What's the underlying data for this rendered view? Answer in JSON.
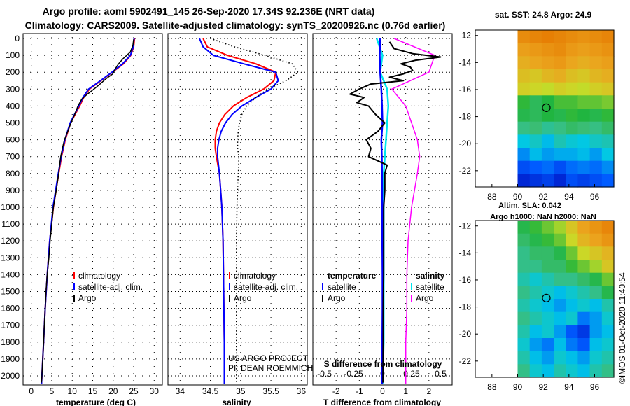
{
  "title_line1": "Argo profile: aoml 5902491_145 26-Sep-2020 17.34S 92.236E (NRT data)",
  "title_line2": "Climatology: CARS2009. Satellite-adjusted climatology: synTS_20200926.nc (0.76d earlier)",
  "colors": {
    "climatology": "#ff0000",
    "satellite": "#0000ff",
    "argo": "#000000",
    "sal_satellite": "#00e5ee",
    "sal_argo": "#ff00ff"
  },
  "depth_ticks": [
    "0",
    "100",
    "200",
    "300",
    "400",
    "500",
    "600",
    "700",
    "800",
    "900",
    "1000",
    "1100",
    "1200",
    "1300",
    "1400",
    "1500",
    "1600",
    "1700",
    "1800",
    "1900",
    "2000"
  ],
  "chart_data": [
    {
      "type": "line",
      "xlabel": "temperature (deg C)",
      "xticks": [
        "0",
        "5",
        "10",
        "15",
        "20",
        "25",
        "30"
      ],
      "xlim": [
        -2,
        32
      ],
      "ylim": [
        2050,
        -50
      ],
      "legend": {
        "position": "bottom-right",
        "items": [
          "climatology",
          "satellite-adj. clim.",
          "Argo"
        ]
      },
      "series": [
        {
          "name": "climatology",
          "depth": [
            0,
            50,
            100,
            150,
            200,
            250,
            300,
            350,
            400,
            500,
            600,
            700,
            800,
            1000,
            1200,
            1400,
            1600,
            1800,
            2000,
            2050
          ],
          "values": [
            25.2,
            25,
            24.3,
            22.5,
            19.8,
            17,
            14.2,
            12.8,
            11.8,
            9.6,
            8.3,
            7.4,
            6.7,
            5.4,
            4.5,
            3.9,
            3.4,
            3,
            2.6,
            2.5
          ]
        },
        {
          "name": "satellite-adj. clim.",
          "depth": [
            0,
            50,
            100,
            150,
            200,
            250,
            300,
            350,
            400,
            500,
            600,
            700,
            800,
            1000,
            1200,
            1400,
            1600,
            1800,
            2000,
            2050
          ],
          "values": [
            25.1,
            24.9,
            24.2,
            22.3,
            19.7,
            16.9,
            14,
            12.6,
            11.6,
            9.5,
            8.2,
            7.3,
            6.6,
            5.3,
            4.5,
            3.9,
            3.4,
            3,
            2.6,
            2.5
          ]
        },
        {
          "name": "Argo",
          "depth": [
            5,
            40,
            80,
            120,
            150,
            180,
            210,
            240,
            270,
            300,
            330,
            360,
            400,
            450,
            500,
            550,
            600,
            650,
            700,
            750,
            800,
            900,
            1000,
            1100,
            1200,
            1300,
            1400,
            1500,
            1600,
            1700,
            1800,
            1900,
            2000,
            2040
          ],
          "values": [
            25,
            24.8,
            24.2,
            22.4,
            21.3,
            20.5,
            19.9,
            18.2,
            16.8,
            15.3,
            13.7,
            12.3,
            11.4,
            10.6,
            9.7,
            8.9,
            8.1,
            7.6,
            7.2,
            6.9,
            6.7,
            6.1,
            5.4,
            5,
            4.6,
            4.3,
            3.9,
            3.6,
            3.4,
            3.2,
            3,
            2.8,
            2.6,
            2.5
          ]
        }
      ]
    },
    {
      "type": "line",
      "xlabel": "salinity",
      "xticks": [
        "34",
        "34.5",
        "35",
        "35.5",
        "36"
      ],
      "xlim": [
        33.8,
        36.1
      ],
      "ylim": [
        2050,
        -50
      ],
      "legend": {
        "position": "bottom-right",
        "items": [
          "climatology",
          "satellite-adj. clim.",
          "Argo"
        ]
      },
      "annotation": [
        "US ARGO PROJECT",
        "PI: DEAN ROEMMICH"
      ],
      "series": [
        {
          "name": "climatology",
          "depth": [
            0,
            50,
            100,
            150,
            200,
            250,
            300,
            350,
            400,
            450,
            500,
            550,
            600,
            650,
            700,
            800,
            900,
            1000,
            1200,
            1500,
            1800,
            2050
          ],
          "values": [
            34.38,
            34.45,
            34.78,
            35.25,
            35.58,
            35.55,
            35.38,
            35.1,
            34.88,
            34.74,
            34.65,
            34.6,
            34.58,
            34.58,
            34.6,
            34.65,
            34.67,
            34.69,
            34.71,
            34.72,
            34.73,
            34.73
          ]
        },
        {
          "name": "satellite-adj. clim.",
          "depth": [
            0,
            50,
            100,
            150,
            200,
            250,
            300,
            350,
            400,
            450,
            500,
            550,
            600,
            650,
            700,
            800,
            900,
            1000,
            1200,
            1500,
            1800,
            2050
          ],
          "values": [
            34.32,
            34.38,
            34.55,
            35.05,
            35.58,
            35.62,
            35.5,
            35.25,
            35.02,
            34.86,
            34.75,
            34.68,
            34.64,
            34.62,
            34.62,
            34.65,
            34.67,
            34.69,
            34.71,
            34.72,
            34.73,
            34.73
          ]
        },
        {
          "name": "Argo",
          "style": "dotted",
          "depth": [
            0,
            50,
            100,
            150,
            200,
            250,
            300,
            350,
            400,
            450,
            500,
            550,
            600,
            650,
            700,
            750,
            800,
            900,
            1000,
            1200,
            1500,
            1800,
            2050
          ],
          "values": [
            34.5,
            34.9,
            35.4,
            35.85,
            35.95,
            35.75,
            35.45,
            35.25,
            35.1,
            35.02,
            34.98,
            34.96,
            34.95,
            34.95,
            34.97,
            34.97,
            34.96,
            34.95,
            34.94,
            34.93,
            34.93,
            34.93,
            34.93
          ]
        }
      ]
    },
    {
      "type": "line",
      "xlabel": "T difference from climatology",
      "xticks": [
        "-2",
        "-1",
        "0",
        "1",
        "2"
      ],
      "xlim": [
        -3,
        3
      ],
      "s_label": "S difference from climatology",
      "s_ticks": [
        "-0.5",
        "-0.25",
        "0",
        "0.25",
        "0.5"
      ],
      "ylim": [
        2050,
        -50
      ],
      "legend": {
        "temperature_title": "temperature",
        "salinity_title": "salinity",
        "temperature_items": [
          "satellite",
          "Argo"
        ],
        "salinity_items": [
          "satellite",
          "Argo"
        ]
      },
      "series": [
        {
          "name": "temperature satellite",
          "depth": [
            0,
            100,
            200,
            300,
            400,
            500,
            600,
            700,
            800,
            1000,
            1200,
            1400,
            1600,
            1800,
            2050
          ],
          "values": [
            -0.1,
            -0.12,
            -0.1,
            -0.05,
            -0.02,
            0,
            -0.05,
            -0.03,
            -0.02,
            -0.01,
            -0.01,
            0,
            0,
            -0.01,
            -0.02
          ]
        },
        {
          "name": "temperature Argo",
          "depth": [
            20,
            60,
            90,
            110,
            130,
            150,
            170,
            190,
            210,
            230,
            250,
            270,
            300,
            330,
            350,
            380,
            400,
            450,
            500,
            550,
            600,
            650,
            700,
            750,
            800,
            900,
            1000,
            1200,
            1400,
            1600,
            1800,
            2000,
            2040
          ],
          "values": [
            0.3,
            0.5,
            1.3,
            2.5,
            1.4,
            0.8,
            1.2,
            1.3,
            0.9,
            0.3,
            0.9,
            -0.5,
            -1.0,
            -1.4,
            -0.8,
            -1.1,
            -0.6,
            -0.3,
            0.1,
            -0.2,
            -0.7,
            -0.5,
            -0.6,
            0.2,
            0.1,
            0.1,
            0.05,
            0.05,
            0.05,
            0.03,
            0.03,
            0.02,
            0.02
          ]
        },
        {
          "name": "salinity satellite",
          "depth": [
            0,
            100,
            200,
            300,
            400,
            500,
            600,
            700,
            800,
            1000,
            1200,
            1400,
            1600,
            1800,
            2050
          ],
          "values": [
            -0.05,
            0,
            -0.02,
            0.04,
            0.05,
            0.04,
            0.03,
            0.02,
            0.01,
            0.01,
            0.01,
            0.01,
            0.01,
            0.01,
            0
          ]
        },
        {
          "name": "salinity Argo",
          "depth": [
            0,
            100,
            200,
            300,
            400,
            500,
            600,
            700,
            800,
            1000,
            1200,
            1400,
            1600,
            1800,
            2050
          ],
          "values": [
            0.1,
            0.45,
            0.4,
            0.08,
            0.2,
            0.25,
            0.3,
            0.32,
            0.3,
            0.25,
            0.22,
            0.21,
            0.21,
            0.2,
            0.2
          ]
        }
      ]
    },
    {
      "type": "heatmap",
      "title": "sat. SST: 24.8 Argo: 24.9",
      "xticks": [
        "88",
        "90",
        "92",
        "94",
        "96"
      ],
      "yticks": [
        "-12",
        "-14",
        "-16",
        "-18",
        "-20",
        "-22"
      ],
      "xlim": [
        86.7,
        97.5
      ],
      "ylim": [
        -23.2,
        -11.6
      ],
      "data_extent_lon": [
        90,
        97.5
      ],
      "rows_lat": [
        -12,
        -13,
        -14,
        -15,
        -16,
        -17,
        -18,
        -19,
        -20,
        -21,
        -22,
        -23
      ],
      "values": [
        [
          26.5,
          26.6,
          26.7,
          26.6,
          26.5,
          26.4,
          26.5,
          26.6
        ],
        [
          26.2,
          26.3,
          26.4,
          26.5,
          26.3,
          26.2,
          26.3,
          26.4
        ],
        [
          26.0,
          26.1,
          26.2,
          26.3,
          26.1,
          26.0,
          26.1,
          26.2
        ],
        [
          25.8,
          25.7,
          25.9,
          26.0,
          25.8,
          25.7,
          25.9,
          26.0
        ],
        [
          25.6,
          25.5,
          25.4,
          25.6,
          25.5,
          25.4,
          25.6,
          25.7
        ],
        [
          24.8,
          24.5,
          24.7,
          24.9,
          24.9,
          25.0,
          25.0,
          25.1
        ],
        [
          24.6,
          24.5,
          24.7,
          24.6,
          24.8,
          24.7,
          24.6,
          24.8
        ],
        [
          24.2,
          24.3,
          24.1,
          24.2,
          24.4,
          24.3,
          24.2,
          24.4
        ],
        [
          23.6,
          23.8,
          23.5,
          23.9,
          23.7,
          23.6,
          23.8,
          23.9
        ],
        [
          23.2,
          23.5,
          23.3,
          23.4,
          23.4,
          23.5,
          23.3,
          23.6
        ],
        [
          22.8,
          22.9,
          23.0,
          22.8,
          23.0,
          23.1,
          23.0,
          23.2
        ],
        [
          22.5,
          22.6,
          22.7,
          22.5,
          22.8,
          22.7,
          22.8,
          22.9
        ]
      ],
      "marker": {
        "lon": 92.236,
        "lat": -17.34
      }
    },
    {
      "type": "heatmap",
      "title_line1": "Altim. SLA: 0.042",
      "title_line2": "Argo h1000: NaN h2000: NaN",
      "xticks": [
        "88",
        "90",
        "92",
        "94",
        "96"
      ],
      "yticks": [
        "-12",
        "-14",
        "-16",
        "-18",
        "-20",
        "-22"
      ],
      "xlim": [
        86.7,
        97.5
      ],
      "ylim": [
        -23.2,
        -11.6
      ],
      "data_extent_lon": [
        90,
        97.5
      ],
      "rows_lat": [
        -12,
        -13,
        -14,
        -15,
        -16,
        -17,
        -18,
        -19,
        -20,
        -21,
        -22,
        -23
      ],
      "values": [
        [
          0.06,
          0.07,
          0.08,
          0.09,
          0.11,
          0.13,
          0.14,
          0.15
        ],
        [
          0.05,
          0.06,
          0.07,
          0.08,
          0.1,
          0.12,
          0.13,
          0.14
        ],
        [
          0.04,
          0.05,
          0.05,
          0.06,
          0.08,
          0.1,
          0.11,
          0.12
        ],
        [
          0.04,
          0.04,
          0.05,
          0.05,
          0.07,
          0.08,
          0.09,
          0.11
        ],
        [
          0.03,
          0.02,
          0.03,
          0.04,
          0.04,
          0.05,
          0.06,
          0.08
        ],
        [
          0.04,
          0.03,
          0.02,
          0.01,
          0.02,
          0.03,
          0.04,
          0.06
        ],
        [
          0.03,
          0.02,
          0.01,
          0.0,
          0.01,
          0.02,
          0.01,
          0.03
        ],
        [
          0.04,
          0.03,
          0.02,
          0.01,
          0.02,
          -0.01,
          0.0,
          0.02
        ],
        [
          0.03,
          0.01,
          0.02,
          0.0,
          -0.02,
          -0.03,
          0.0,
          0.01
        ],
        [
          0.02,
          0.0,
          -0.01,
          0.01,
          -0.01,
          -0.02,
          0.01,
          0.02
        ],
        [
          0.03,
          0.01,
          0.0,
          0.02,
          0.01,
          0.0,
          0.02,
          0.03
        ],
        [
          0.04,
          0.02,
          0.01,
          0.03,
          0.02,
          0.01,
          0.03,
          0.04
        ]
      ],
      "marker": {
        "lon": 92.236,
        "lat": -17.34
      }
    }
  ],
  "credit": "©IMOS 01-Oct-2020 11:40:54"
}
